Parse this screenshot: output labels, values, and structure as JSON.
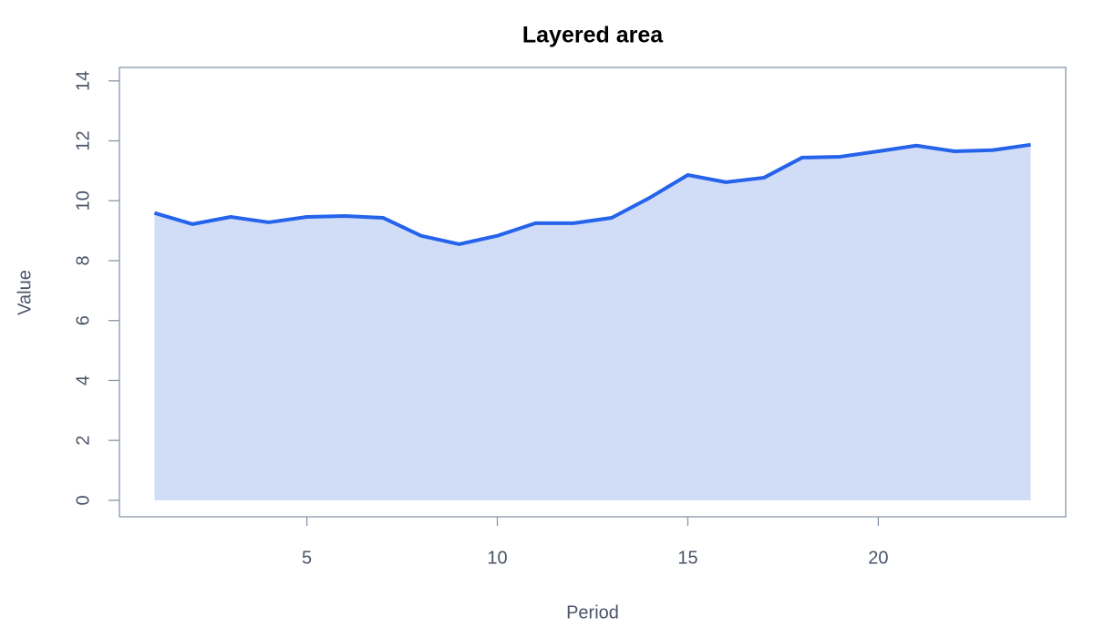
{
  "chart_data": {
    "type": "area",
    "title": "Layered area",
    "x_label": "Period",
    "y_label": "Value",
    "x": [
      1,
      2,
      3,
      4,
      5,
      6,
      7,
      8,
      9,
      10,
      11,
      12,
      13,
      14,
      15,
      16,
      17,
      18,
      19,
      20,
      21,
      22,
      23,
      24
    ],
    "series": [
      {
        "color": "#2563eb",
        "fill": "#d1dcf7",
        "values": [
          9.59,
          9.22,
          9.46,
          9.28,
          9.46,
          9.49,
          9.43,
          8.83,
          8.55,
          8.83,
          9.25,
          9.25,
          9.43,
          10.1,
          10.86,
          10.62,
          10.77,
          11.44,
          11.47,
          11.65,
          11.84,
          11.65,
          11.69,
          11.87
        ]
      }
    ],
    "xlim": [
      0.08,
      24.92
    ],
    "xticks": [
      5,
      10,
      15,
      20
    ],
    "ylim": [
      -0.55,
      14.45
    ],
    "yticks": [
      0,
      2,
      4,
      6,
      8,
      10,
      12,
      14
    ],
    "grid": false
  }
}
